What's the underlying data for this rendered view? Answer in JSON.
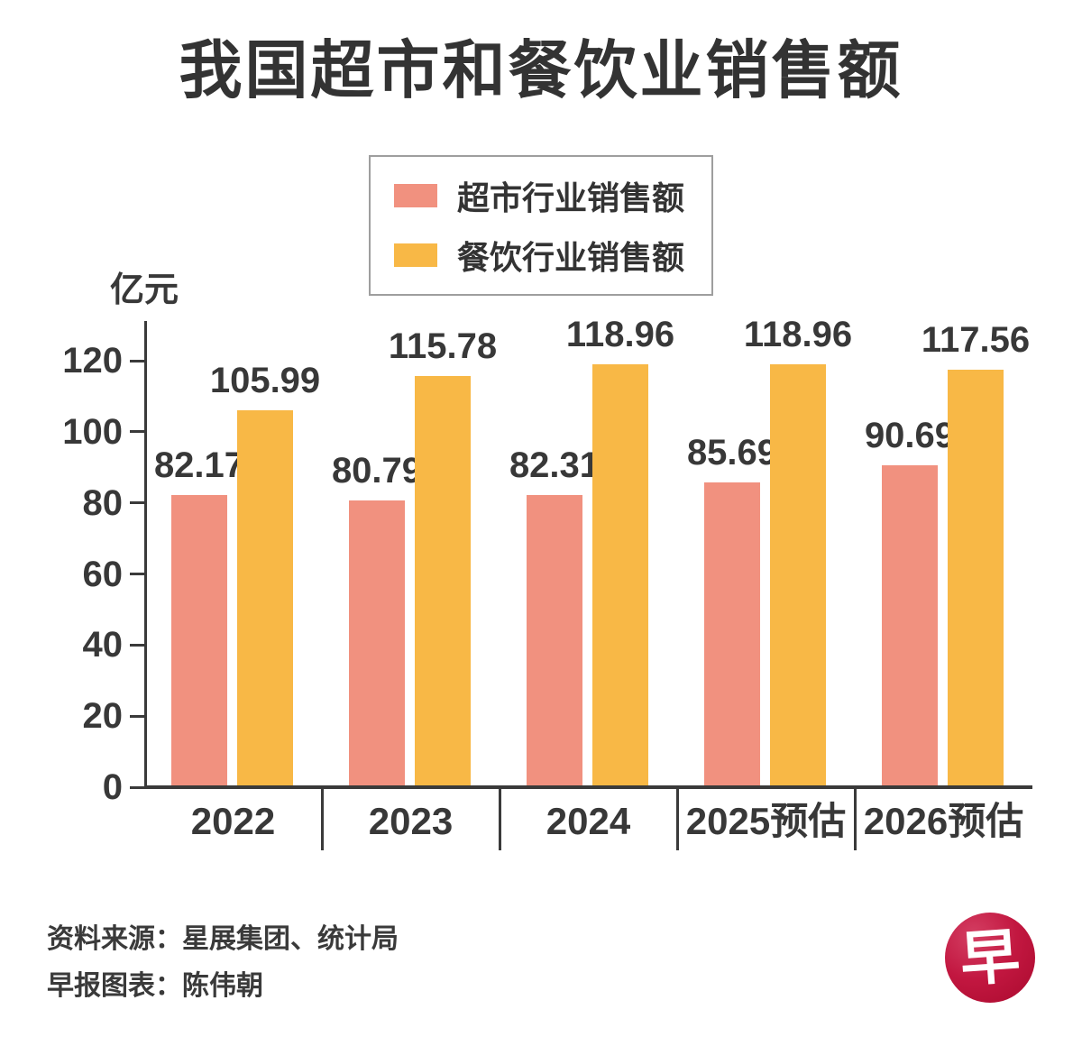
{
  "title": "我国超市和餐饮业销售额",
  "axis": {
    "unit": "亿元"
  },
  "legend": {
    "items": [
      {
        "label": "超市行业销售额",
        "color": "#F1917F"
      },
      {
        "label": "餐饮行业销售额",
        "color": "#F8B846"
      }
    ]
  },
  "chart_data": {
    "type": "bar",
    "title": "我国超市和餐饮业销售额",
    "categories": [
      "2022",
      "2023",
      "2024",
      "2025预估",
      "2026预估"
    ],
    "series": [
      {
        "name": "超市行业销售额",
        "color": "#F1917F",
        "values": [
          82.17,
          80.79,
          82.31,
          85.69,
          90.69
        ]
      },
      {
        "name": "餐饮行业销售额",
        "color": "#F8B846",
        "values": [
          105.99,
          115.78,
          118.96,
          118.96,
          117.56
        ]
      }
    ],
    "xlabel": "",
    "ylabel": "亿元",
    "ylim": [
      0,
      131
    ],
    "yticks": [
      0,
      20,
      40,
      60,
      80,
      100,
      120
    ],
    "grid": false,
    "legend_position": "top",
    "value_labels": true
  },
  "footer": {
    "source_line": "资料来源：星展集团、统计局",
    "credit_line": "早报图表：陈伟朝"
  },
  "logo": {
    "char": "早",
    "color": "#C21740"
  }
}
